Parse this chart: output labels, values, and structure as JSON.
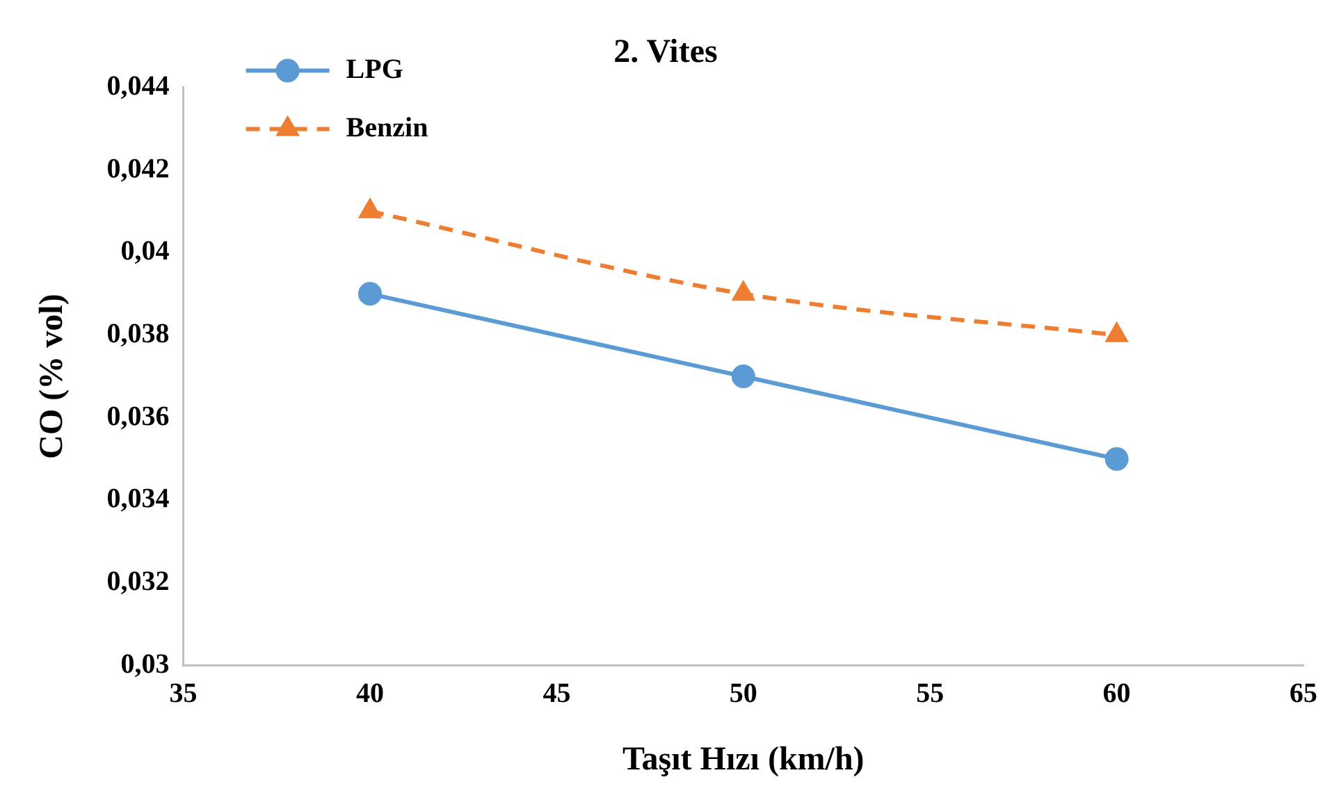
{
  "chart_data": {
    "type": "line",
    "title": "2. Vites",
    "xlabel": "Taşıt Hızı (km/h)",
    "ylabel": "CO (% vol)",
    "x": [
      40,
      50,
      60
    ],
    "series": [
      {
        "name": "LPG",
        "color": "#5b9bd5",
        "values": [
          0.039,
          0.037,
          0.035
        ],
        "marker": "circle",
        "line_style": "solid"
      },
      {
        "name": "Benzin",
        "color": "#ed7d31",
        "values": [
          0.041,
          0.039,
          0.038
        ],
        "marker": "triangle",
        "line_style": "dashed"
      }
    ],
    "xlim": [
      35,
      65
    ],
    "xticks": [
      35,
      40,
      45,
      50,
      55,
      60,
      65
    ],
    "ylim": [
      0.03,
      0.044
    ],
    "yticks": [
      {
        "value": 0.03,
        "label": "0,03"
      },
      {
        "value": 0.032,
        "label": "0,032"
      },
      {
        "value": 0.034,
        "label": "0,034"
      },
      {
        "value": 0.036,
        "label": "0,036"
      },
      {
        "value": 0.038,
        "label": "0,038"
      },
      {
        "value": 0.04,
        "label": "0,04"
      },
      {
        "value": 0.042,
        "label": "0,042"
      },
      {
        "value": 0.044,
        "label": "0,044"
      }
    ],
    "grid": false,
    "legend": "top left"
  }
}
